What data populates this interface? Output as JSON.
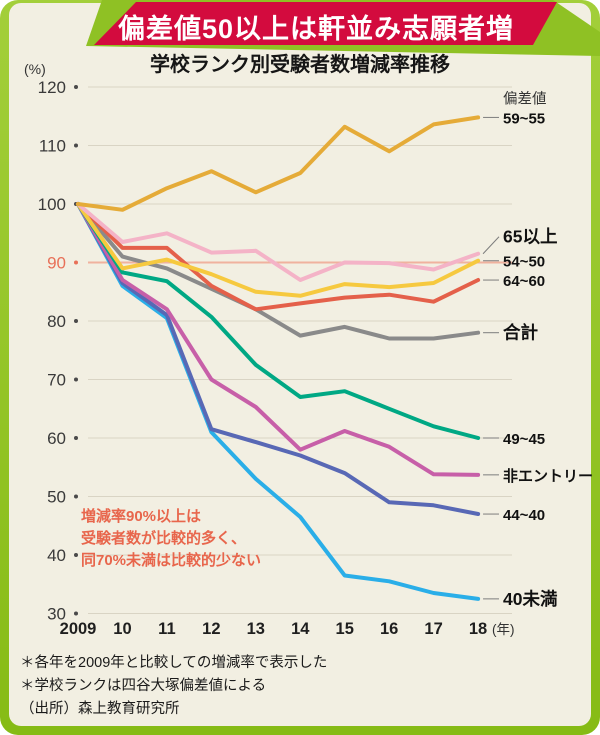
{
  "banner": {
    "title": "偏差値50以上は軒並み志願者増"
  },
  "subtitle": "学校ランク別受験者数増減率推移",
  "annotation": {
    "color": "#e8664c",
    "lines": [
      "増減率90%以上は",
      "受験者数が比較的多く、",
      "同70%未満は比較的少ない"
    ]
  },
  "footnotes": [
    "＊各年を2009年と比較しての増減率で表示した",
    "＊学校ランクは四谷大塚偏差値による",
    "（出所）森上教育研究所"
  ],
  "chart_data": {
    "type": "line",
    "title": "学校ランク別受験者数増減率推移",
    "y_axis_unit": "(%)",
    "x_labels": [
      "2009",
      "10",
      "11",
      "12",
      "13",
      "14",
      "15",
      "16",
      "17",
      "18"
    ],
    "x_suffix": "(年)",
    "y_ticks": [
      120,
      110,
      100,
      90,
      80,
      70,
      60,
      50,
      40,
      30
    ],
    "ylim": [
      30,
      120
    ],
    "grid": true,
    "highlight_gridline": {
      "value": 90,
      "color": "#f0b29e",
      "label_color": "#e87058"
    },
    "group_label": "偏差値",
    "legend_position": "right-of-line-ends",
    "series": [
      {
        "name": "59~55",
        "color": "#e5ab38",
        "values": [
          100,
          99,
          102.7,
          105.6,
          102,
          105.3,
          113.2,
          109,
          113.6,
          114.8
        ]
      },
      {
        "name": "65以上",
        "color": "#f4b3c7",
        "values": [
          100,
          93.5,
          95,
          91.7,
          92,
          87,
          90,
          89.9,
          88.8,
          91.5
        ]
      },
      {
        "name": "54~50",
        "color": "#f6c93f",
        "values": [
          100,
          89,
          90.5,
          88,
          85,
          84.3,
          86.3,
          85.8,
          86.5,
          90.3
        ]
      },
      {
        "name": "64~60",
        "color": "#e4604a",
        "values": [
          100,
          92.5,
          92.5,
          86,
          82,
          83,
          84,
          84.5,
          83.3,
          87
        ]
      },
      {
        "name": "合計",
        "color": "#8a8a8a",
        "values": [
          100,
          91,
          89,
          85.5,
          82,
          77.5,
          79,
          77,
          77,
          78
        ]
      },
      {
        "name": "49~45",
        "color": "#00a884",
        "values": [
          100,
          88.3,
          86.8,
          80.7,
          72.5,
          67,
          68,
          65,
          62,
          60
        ]
      },
      {
        "name": "非エントリー",
        "color": "#c75fa8",
        "values": [
          100,
          87,
          82,
          70,
          65.3,
          58,
          61.2,
          58.5,
          53.8,
          53.7
        ]
      },
      {
        "name": "44~40",
        "color": "#5868b5",
        "values": [
          100,
          86.5,
          81,
          61.5,
          59.3,
          57,
          54,
          49,
          48.5,
          47
        ]
      },
      {
        "name": "40未満",
        "color": "#2aaee8",
        "values": [
          100,
          86,
          80.5,
          61,
          53,
          46.5,
          36.5,
          35.5,
          33.5,
          32.5
        ]
      }
    ]
  }
}
